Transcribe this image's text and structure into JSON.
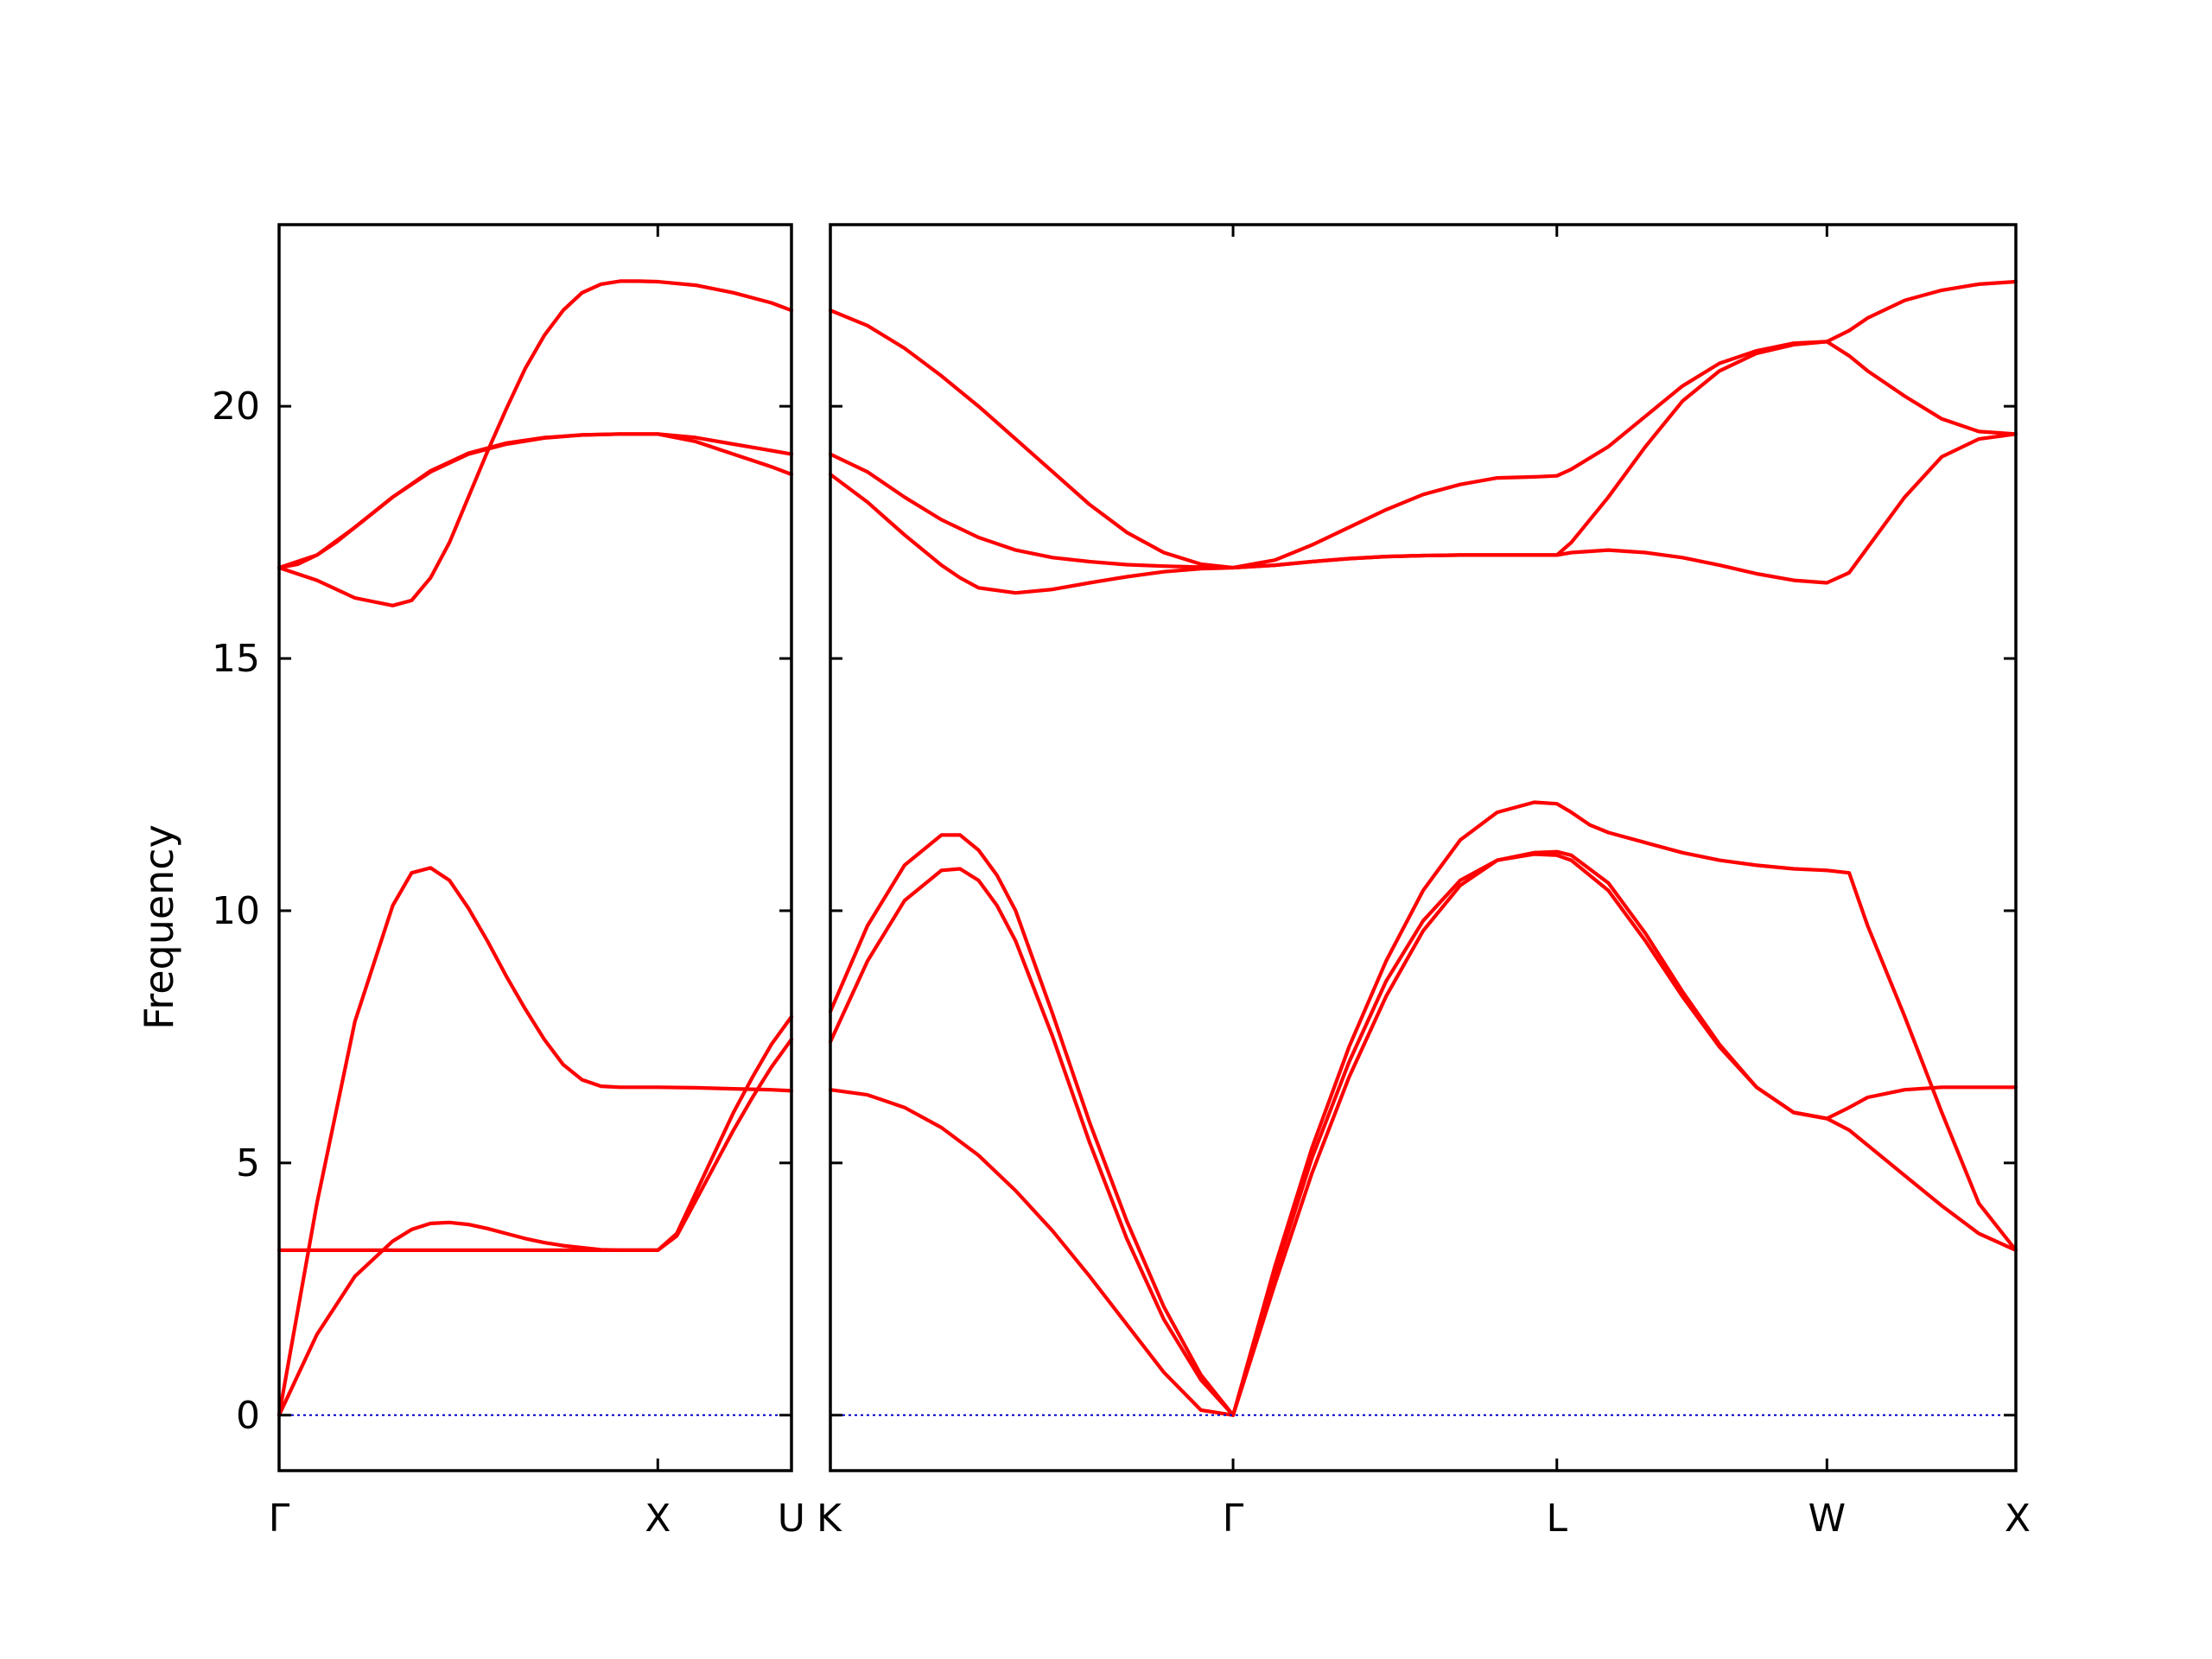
{
  "chart_data": {
    "type": "line",
    "title": "",
    "ylabel": "Frequency",
    "ylim": [
      -1.1,
      23.6
    ],
    "yticks": [
      0,
      5,
      10,
      15,
      20
    ],
    "colors": {
      "band": "#ff0000",
      "zero_line": "#0000cc"
    },
    "grid": false,
    "panels": [
      {
        "name": "left-panel",
        "x_range": [
          0,
          1.353
        ],
        "ticks": [
          {
            "x": 0,
            "label": "Γ"
          },
          {
            "x": 1,
            "label": "X"
          },
          {
            "x": 1.353,
            "label": "U"
          }
        ],
        "series": [
          {
            "x": [
              0,
              0.1,
              0.2,
              0.3,
              0.35,
              0.4,
              0.45,
              0.5,
              0.55,
              0.6,
              0.65,
              0.7,
              0.75,
              0.8,
              0.85,
              0.9,
              0.95,
              1.0,
              1.05,
              1.1,
              1.15,
              1.2,
              1.25,
              1.3,
              1.353
            ],
            "y": [
              0,
              1.6,
              2.75,
              3.45,
              3.68,
              3.8,
              3.82,
              3.78,
              3.7,
              3.6,
              3.5,
              3.42,
              3.36,
              3.32,
              3.28,
              3.27,
              3.27,
              3.27,
              3.6,
              4.4,
              5.2,
              6.0,
              6.7,
              7.35,
              7.9
            ]
          },
          {
            "x": [
              0,
              0.1,
              0.2,
              0.3,
              0.35,
              0.4,
              0.45,
              0.5,
              0.55,
              0.6,
              0.65,
              0.7,
              0.75,
              0.8,
              0.85,
              0.9,
              0.95,
              1.0,
              1.1,
              1.2,
              1.3,
              1.353
            ],
            "y": [
              0,
              4.2,
              7.8,
              10.1,
              10.75,
              10.85,
              10.6,
              10.05,
              9.4,
              8.7,
              8.05,
              7.45,
              6.95,
              6.65,
              6.52,
              6.5,
              6.5,
              6.5,
              6.49,
              6.47,
              6.45,
              6.43
            ]
          },
          {
            "x": [
              0,
              1.0,
              1.05,
              1.1,
              1.15,
              1.2,
              1.25,
              1.3,
              1.353
            ],
            "y": [
              3.27,
              3.27,
              3.55,
              4.25,
              4.95,
              5.65,
              6.3,
              6.9,
              7.45
            ]
          },
          {
            "x": [
              0,
              0.1,
              0.2,
              0.3,
              0.35,
              0.4,
              0.45,
              0.5,
              0.55,
              0.6,
              0.65,
              0.7,
              0.75,
              0.8,
              0.85,
              0.9,
              0.95,
              1.0,
              1.1,
              1.2,
              1.3,
              1.353
            ],
            "y": [
              16.8,
              16.55,
              16.2,
              16.05,
              16.15,
              16.6,
              17.3,
              18.2,
              19.1,
              19.95,
              20.75,
              21.4,
              21.9,
              22.25,
              22.42,
              22.48,
              22.48,
              22.47,
              22.4,
              22.25,
              22.05,
              21.9
            ]
          },
          {
            "x": [
              0,
              0.05,
              0.1,
              0.15,
              0.2,
              0.3,
              0.4,
              0.5,
              0.6,
              0.7,
              0.8,
              0.9,
              1.0,
              1.1,
              1.2,
              1.3,
              1.353
            ],
            "y": [
              16.8,
              16.87,
              17.05,
              17.3,
              17.6,
              18.2,
              18.72,
              19.07,
              19.27,
              19.38,
              19.43,
              19.45,
              19.45,
              19.38,
              19.25,
              19.12,
              19.05
            ]
          },
          {
            "x": [
              0,
              0.1,
              0.2,
              0.3,
              0.4,
              0.5,
              0.6,
              0.7,
              0.8,
              0.9,
              1.0,
              1.1,
              1.2,
              1.3,
              1.353
            ],
            "y": [
              16.8,
              17.05,
              17.6,
              18.2,
              18.7,
              19.05,
              19.25,
              19.37,
              19.43,
              19.45,
              19.45,
              19.3,
              19.05,
              18.8,
              18.65
            ]
          },
          {
            "x": [
              0,
              1.353
            ],
            "y": [
              0,
              0
            ],
            "role": "zero"
          }
        ]
      },
      {
        "name": "right-panel",
        "x_range": [
          0,
          3.2
        ],
        "ticks": [
          {
            "x": 0,
            "label": "K"
          },
          {
            "x": 1.087,
            "label": "Γ"
          },
          {
            "x": 1.961,
            "label": "L"
          },
          {
            "x": 2.69,
            "label": "W"
          },
          {
            "x": 3.2,
            "label": "X"
          }
        ],
        "series": [
          {
            "x": [
              0,
              0.1,
              0.2,
              0.3,
              0.4,
              0.5,
              0.6,
              0.7,
              0.8,
              0.9,
              1.0,
              1.087,
              1.2,
              1.3,
              1.4,
              1.5,
              1.6,
              1.7,
              1.8,
              1.9,
              1.961,
              2.0,
              2.1,
              2.2,
              2.3,
              2.4,
              2.5,
              2.6,
              2.69,
              2.75,
              2.8,
              2.9,
              3.0,
              3.1,
              3.2
            ],
            "y": [
              6.45,
              6.35,
              6.1,
              5.7,
              5.15,
              4.45,
              3.65,
              2.75,
              1.8,
              0.85,
              0.1,
              0,
              2.8,
              5.1,
              7.0,
              8.6,
              9.8,
              10.6,
              11.0,
              11.12,
              11.1,
              11.0,
              10.4,
              9.4,
              8.3,
              7.3,
              6.5,
              6.0,
              5.88,
              5.65,
              5.35,
              4.75,
              4.15,
              3.6,
              3.27
            ]
          },
          {
            "x": [
              0,
              0.1,
              0.2,
              0.3,
              0.35,
              0.4,
              0.45,
              0.5,
              0.6,
              0.7,
              0.8,
              0.9,
              1.0,
              1.087,
              1.2,
              1.3,
              1.4,
              1.5,
              1.6,
              1.7,
              1.8,
              1.9,
              1.961,
              2.0,
              2.1,
              2.2,
              2.3,
              2.4,
              2.5,
              2.6,
              2.69,
              2.75,
              2.8,
              2.9,
              3.0,
              3.1,
              3.2
            ],
            "y": [
              7.4,
              9.0,
              10.2,
              10.8,
              10.83,
              10.6,
              10.1,
              9.4,
              7.5,
              5.4,
              3.5,
              1.9,
              0.7,
              0,
              2.6,
              4.8,
              6.7,
              8.3,
              9.6,
              10.5,
              11.0,
              11.15,
              11.17,
              11.1,
              10.55,
              9.55,
              8.4,
              7.35,
              6.5,
              6.0,
              5.88,
              6.1,
              6.3,
              6.45,
              6.5,
              6.5,
              6.5
            ]
          },
          {
            "x": [
              0,
              0.1,
              0.2,
              0.3,
              0.35,
              0.4,
              0.45,
              0.5,
              0.6,
              0.7,
              0.8,
              0.9,
              1.0,
              1.087,
              1.2,
              1.3,
              1.4,
              1.5,
              1.6,
              1.7,
              1.8,
              1.9,
              1.961,
              2.0,
              2.05,
              2.1,
              2.2,
              2.3,
              2.4,
              2.5,
              2.6,
              2.69,
              2.75,
              2.8,
              2.9,
              3.0,
              3.1,
              3.2
            ],
            "y": [
              8.0,
              9.7,
              10.9,
              11.5,
              11.5,
              11.2,
              10.7,
              10.0,
              7.95,
              5.8,
              3.85,
              2.15,
              0.8,
              0,
              2.95,
              5.3,
              7.3,
              9.0,
              10.4,
              11.4,
              11.95,
              12.15,
              12.12,
              11.95,
              11.7,
              11.55,
              11.35,
              11.15,
              11.0,
              10.9,
              10.83,
              10.8,
              10.75,
              9.7,
              7.9,
              6.0,
              4.2,
              3.27
            ]
          },
          {
            "x": [
              0,
              0.1,
              0.2,
              0.3,
              0.35,
              0.4,
              0.5,
              0.6,
              0.7,
              0.8,
              0.9,
              1.0,
              1.087,
              1.2,
              1.3,
              1.4,
              1.5,
              1.6,
              1.7,
              1.8,
              1.9,
              1.961,
              2.0,
              2.1,
              2.2,
              2.3,
              2.4,
              2.5,
              2.6,
              2.69,
              2.75,
              2.8,
              2.9,
              3.0,
              3.1,
              3.2
            ],
            "y": [
              18.65,
              18.1,
              17.45,
              16.85,
              16.6,
              16.4,
              16.3,
              16.37,
              16.5,
              16.62,
              16.72,
              16.78,
              16.8,
              16.85,
              16.92,
              16.98,
              17.02,
              17.04,
              17.05,
              17.05,
              17.05,
              17.05,
              17.1,
              17.15,
              17.1,
              17.0,
              16.85,
              16.68,
              16.55,
              16.5,
              16.7,
              17.2,
              18.2,
              19.0,
              19.35,
              19.45
            ]
          },
          {
            "x": [
              0,
              0.1,
              0.2,
              0.3,
              0.4,
              0.5,
              0.6,
              0.7,
              0.8,
              0.9,
              1.0,
              1.087,
              1.2,
              1.3,
              1.4,
              1.5,
              1.6,
              1.7,
              1.8,
              1.9,
              1.961,
              2.0,
              2.1,
              2.2,
              2.3,
              2.4,
              2.5,
              2.6,
              2.69,
              2.75,
              2.8,
              2.9,
              3.0,
              3.1,
              3.2
            ],
            "y": [
              19.05,
              18.7,
              18.2,
              17.75,
              17.4,
              17.15,
              17.0,
              16.92,
              16.86,
              16.83,
              16.81,
              16.8,
              16.85,
              16.92,
              16.98,
              17.02,
              17.04,
              17.05,
              17.05,
              17.05,
              17.05,
              17.3,
              18.2,
              19.2,
              20.1,
              20.7,
              21.05,
              21.22,
              21.28,
              21.0,
              20.7,
              20.2,
              19.75,
              19.5,
              19.45
            ]
          },
          {
            "x": [
              0,
              0.1,
              0.2,
              0.3,
              0.4,
              0.5,
              0.6,
              0.7,
              0.8,
              0.9,
              1.0,
              1.087,
              1.2,
              1.3,
              1.4,
              1.5,
              1.6,
              1.7,
              1.8,
              1.9,
              1.961,
              2.0,
              2.1,
              2.2,
              2.3,
              2.4,
              2.5,
              2.6,
              2.69,
              2.75,
              2.8,
              2.9,
              3.0,
              3.1,
              3.2
            ],
            "y": [
              21.9,
              21.6,
              21.15,
              20.6,
              20.0,
              19.35,
              18.7,
              18.05,
              17.5,
              17.1,
              16.87,
              16.8,
              16.95,
              17.25,
              17.6,
              17.95,
              18.25,
              18.45,
              18.58,
              18.6,
              18.62,
              18.75,
              19.2,
              19.8,
              20.4,
              20.85,
              21.1,
              21.25,
              21.28,
              21.5,
              21.75,
              22.1,
              22.3,
              22.42,
              22.47
            ]
          },
          {
            "x": [
              0,
              3.2
            ],
            "y": [
              0,
              0
            ],
            "role": "zero"
          }
        ]
      }
    ]
  }
}
